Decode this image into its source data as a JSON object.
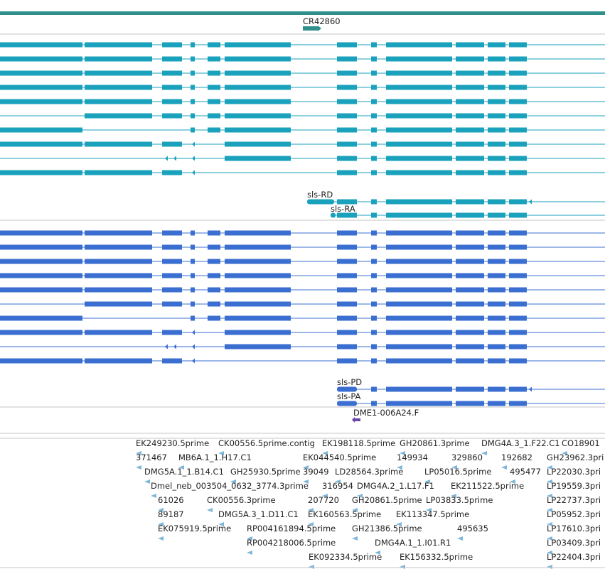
{
  "track_top": {
    "label": "CR42860",
    "color": "#2f8f8c"
  },
  "colors": {
    "transcript": "#1aa2bd",
    "gene": "#3a6fd1",
    "clone": "#6a45a8",
    "est": "#7fb7d9",
    "separator": "#c4c4c4",
    "label": "#222222"
  },
  "transcripts": {
    "labels": {
      "sls_rd": "sls-RD",
      "sls_ra": "sls-RA"
    }
  },
  "genes": {
    "labels": {
      "sls_pd": "sls-PD",
      "sls_pa": "sls-PA"
    }
  },
  "clone": {
    "label": "DME1-006A24.F"
  },
  "ests": [
    "EK249230.5prime",
    "CK00556.5prime.contig",
    "EK198118.5prime",
    "GH20861.3prime",
    "DMG4A.3_1.F22.C1",
    "CO18901",
    "371467",
    "MB6A.1_1.H17.C1",
    "EK044540.5prime",
    "149934",
    "329860",
    "192682",
    "GH23962.3pri",
    "DMG5A.1_1.B14.C1",
    "GH25930.5prime",
    "39049",
    "LD28564.3prime",
    "LP05016.5prime",
    "495477",
    "LP22030.3pri",
    "Dmel_neb_003504_0632_3774.3prime",
    "316954",
    "DMG4A.2_1.L17.F1",
    "EK211522.5prime",
    "LP19559.3pri",
    "61026",
    "CK00556.3prime",
    "207720",
    "GH20861.5prime",
    "LP03833.5prime",
    "LP22737.3pri",
    "89187",
    "DMG5A.3_1.D11.C1",
    "EK160563.5prime",
    "EK113347.5prime",
    "LP05952.3pri",
    "EK075919.5prime",
    "RP004161894.5prime",
    "GH21386.5prime",
    "495635",
    "LP17610.3pri",
    "RP004218006.5prime",
    "DMG4A.1_1.I01.R1",
    "LP03409.3pri",
    "EK092334.5prime",
    "EK156332.5prime",
    "LP22404.3pri"
  ]
}
